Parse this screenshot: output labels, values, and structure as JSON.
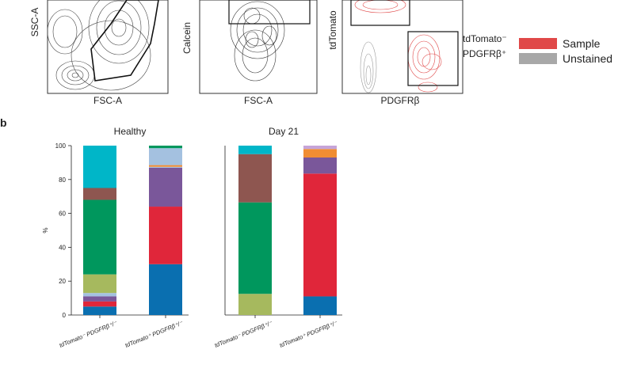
{
  "panel_b_label": "b",
  "flow": {
    "plot1": {
      "xlabel": "FSC-A",
      "ylabel": "SSC-A"
    },
    "plot2": {
      "xlabel": "FSC-A",
      "ylabel": "Calcein"
    },
    "plot3": {
      "xlabel": "PDGFRβ",
      "ylabel": "tdTomato",
      "gate_label_line1": "tdTomato⁻",
      "gate_label_line2": "PDGFRβ⁺"
    },
    "legend": [
      {
        "name": "Sample",
        "color": "#e04848"
      },
      {
        "name": "Unstained",
        "color": "#a8a8a8"
      }
    ]
  },
  "chart_data": [
    {
      "type": "bar",
      "stacked": true,
      "title": "Healthy",
      "ylabel": "%",
      "ylim": [
        0,
        100
      ],
      "yticks": [
        "0",
        "20",
        "40",
        "60",
        "80",
        "100"
      ],
      "categories": [
        "tdTomato⁻ PDGFRβ⁺/⁻",
        "tdTomato⁺ PDGFRβ⁺/⁻"
      ],
      "series": [
        {
          "color": "#0a6fb0",
          "values": [
            5,
            30
          ]
        },
        {
          "color": "#e0263a",
          "values": [
            3,
            34
          ]
        },
        {
          "color": "#7a579a",
          "values": [
            3,
            23
          ]
        },
        {
          "color": "#a4c1e0",
          "values": [
            2,
            0.5
          ]
        },
        {
          "color": "#a6b95e",
          "values": [
            11,
            0
          ]
        },
        {
          "color": "#00975d",
          "values": [
            44,
            0
          ]
        },
        {
          "color": "#8e5650",
          "values": [
            7,
            0
          ]
        },
        {
          "color": "#f08d33",
          "values": [
            0,
            1
          ]
        },
        {
          "color": "#a4c1e0",
          "values": [
            0,
            10
          ]
        },
        {
          "color": "#00b6c8",
          "values": [
            25,
            0
          ]
        },
        {
          "color": "#00975d",
          "values": [
            0,
            1.5
          ]
        }
      ]
    },
    {
      "type": "bar",
      "stacked": true,
      "title": "Day 21",
      "ylim": [
        0,
        100
      ],
      "categories": [
        "tdTomato⁻ PDGFRβ⁺/⁻",
        "tdTomato⁺ PDGFRβ⁺/⁻"
      ],
      "series": [
        {
          "color": "#0a6fb0",
          "values": [
            0,
            11
          ]
        },
        {
          "color": "#a6b95e",
          "values": [
            12.5,
            0
          ]
        },
        {
          "color": "#00975d",
          "values": [
            54,
            0
          ]
        },
        {
          "color": "#e0263a",
          "values": [
            0,
            72.5
          ]
        },
        {
          "color": "#8e5650",
          "values": [
            28.5,
            0
          ]
        },
        {
          "color": "#7a579a",
          "values": [
            0,
            9.5
          ]
        },
        {
          "color": "#f08d33",
          "values": [
            0,
            5
          ]
        },
        {
          "color": "#00b6c8",
          "values": [
            5,
            0
          ]
        },
        {
          "color": "#c6a4d8",
          "values": [
            0,
            2
          ]
        }
      ]
    }
  ]
}
